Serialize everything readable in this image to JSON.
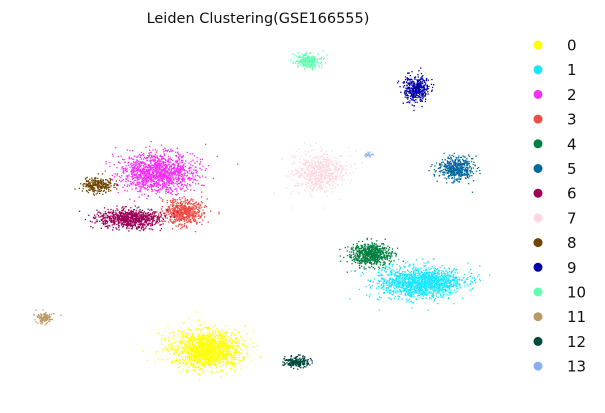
{
  "chart_data": {
    "type": "scatter",
    "title": "Leiden Clustering(GSE166555)",
    "xlabel": "",
    "ylabel": "",
    "axes_visible": false,
    "legend_position": "right",
    "clusters": [
      {
        "label": "0",
        "color": "#ffff00",
        "center": [
          206,
          349
        ],
        "spread": [
          31,
          17
        ],
        "count": 1500
      },
      {
        "label": "1",
        "color": "#19e6ff",
        "center": [
          420,
          282
        ],
        "spread": [
          38,
          14
        ],
        "count": 1500
      },
      {
        "label": "2",
        "color": "#f531f5",
        "center": [
          157,
          172
        ],
        "spread": [
          34,
          17
        ],
        "count": 1400
      },
      {
        "label": "3",
        "color": "#ef4a43",
        "center": [
          183,
          211
        ],
        "spread": [
          18,
          11
        ],
        "count": 600
      },
      {
        "label": "4",
        "color": "#008040",
        "center": [
          370,
          254
        ],
        "spread": [
          18,
          10
        ],
        "count": 700
      },
      {
        "label": "5",
        "color": "#00699e",
        "center": [
          455,
          168
        ],
        "spread": [
          16,
          10
        ],
        "count": 500
      },
      {
        "label": "6",
        "color": "#9e0058",
        "center": [
          130,
          218
        ],
        "spread": [
          28,
          9
        ],
        "count": 800
      },
      {
        "label": "7",
        "color": "#ffd6e0",
        "center": [
          318,
          172
        ],
        "spread": [
          24,
          18
        ],
        "count": 600
      },
      {
        "label": "8",
        "color": "#6e4400",
        "center": [
          97,
          185
        ],
        "spread": [
          14,
          7
        ],
        "count": 250
      },
      {
        "label": "9",
        "color": "#0000a8",
        "center": [
          416,
          88
        ],
        "spread": [
          12,
          12
        ],
        "count": 400
      },
      {
        "label": "10",
        "color": "#5fffb0",
        "center": [
          307,
          60
        ],
        "spread": [
          11,
          6
        ],
        "count": 250
      },
      {
        "label": "11",
        "color": "#b89b62",
        "center": [
          44,
          317
        ],
        "spread": [
          7,
          5
        ],
        "count": 120
      },
      {
        "label": "12",
        "color": "#00493e",
        "center": [
          296,
          361
        ],
        "spread": [
          11,
          5
        ],
        "count": 200
      },
      {
        "label": "13",
        "color": "#8caef0",
        "center": [
          368,
          154
        ],
        "spread": [
          4,
          2
        ],
        "count": 25
      }
    ]
  }
}
